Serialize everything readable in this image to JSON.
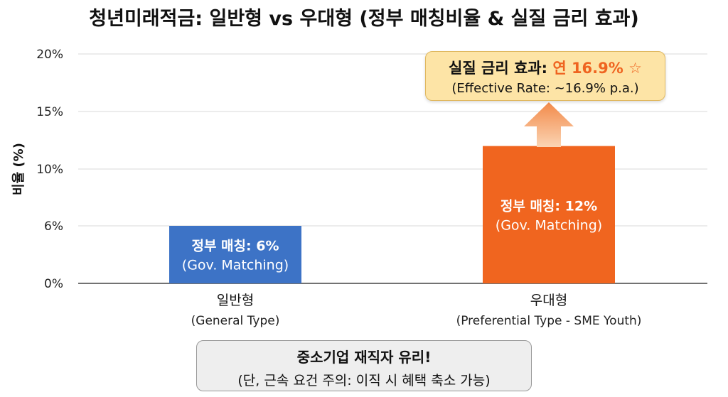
{
  "chart_data": {
    "type": "bar",
    "title": "청년미래적금: 일반형 vs 우대형 (정부 매칭비율 & 실질 금리 효과)",
    "ylabel": "비율 (%)",
    "yticks": [
      "0%",
      "6%",
      "10%",
      "15%",
      "20%"
    ],
    "ylim": [
      0,
      20
    ],
    "grid": true,
    "categories": [
      {
        "label": "일반형",
        "sublabel": "(General Type)"
      },
      {
        "label": "우대형",
        "sublabel": "(Preferential Type - SME Youth)"
      }
    ],
    "values": [
      6,
      12
    ],
    "bar_labels": [
      {
        "line1": "정부 매칭: 6%",
        "line2": "(Gov. Matching)"
      },
      {
        "line1": "정부 매칭: 12%",
        "line2": "(Gov. Matching)"
      }
    ],
    "bar_colors": [
      "#3d73c6",
      "#f0651f"
    ],
    "callout": {
      "prefix": "실질 금리 효과: ",
      "highlight": "연 16.9% ☆",
      "line2": "(Effective Rate: ~16.9% p.a.)"
    },
    "note": {
      "line1": "중소기업 재직자 유리!",
      "line2": "(단, 근속 요건 주의: 이직 시 혜택 축소 가능)"
    }
  }
}
